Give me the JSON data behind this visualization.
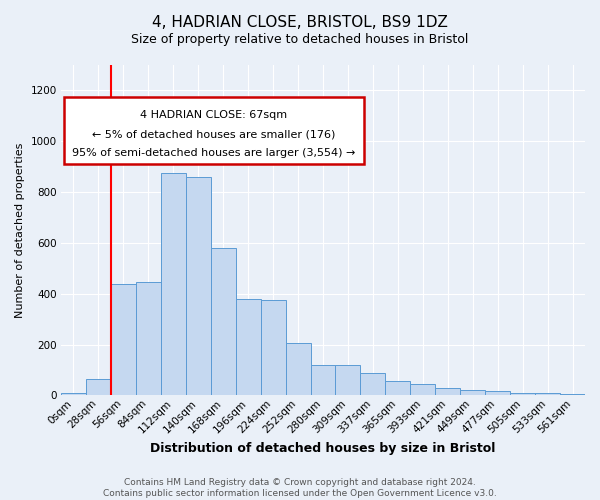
{
  "title": "4, HADRIAN CLOSE, BRISTOL, BS9 1DZ",
  "subtitle": "Size of property relative to detached houses in Bristol",
  "xlabel": "Distribution of detached houses by size in Bristol",
  "ylabel": "Number of detached properties",
  "footer_line1": "Contains HM Land Registry data © Crown copyright and database right 2024.",
  "footer_line2": "Contains public sector information licensed under the Open Government Licence v3.0.",
  "annotation_title": "4 HADRIAN CLOSE: 67sqm",
  "annotation_line2": "← 5% of detached houses are smaller (176)",
  "annotation_line3": "95% of semi-detached houses are larger (3,554) →",
  "bar_values": [
    10,
    65,
    440,
    445,
    875,
    860,
    580,
    380,
    375,
    205,
    120,
    120,
    90,
    55,
    45,
    30,
    20,
    18,
    10,
    8,
    5
  ],
  "bin_labels": [
    "0sqm",
    "28sqm",
    "56sqm",
    "84sqm",
    "112sqm",
    "140sqm",
    "168sqm",
    "196sqm",
    "224sqm",
    "252sqm",
    "280sqm",
    "309sqm",
    "337sqm",
    "365sqm",
    "393sqm",
    "421sqm",
    "449sqm",
    "477sqm",
    "505sqm",
    "533sqm",
    "561sqm"
  ],
  "bar_color": "#c5d8f0",
  "bar_edge_color": "#5b9bd5",
  "ylim": [
    0,
    1300
  ],
  "yticks": [
    0,
    200,
    400,
    600,
    800,
    1000,
    1200
  ],
  "bg_color": "#eaf0f8",
  "grid_color": "#ffffff",
  "annotation_box_color": "#ffffff",
  "annotation_box_edge": "#cc0000",
  "title_fontsize": 11,
  "subtitle_fontsize": 9,
  "xlabel_fontsize": 9,
  "ylabel_fontsize": 8,
  "tick_fontsize": 7.5,
  "footer_fontsize": 6.5,
  "ann_fontsize": 8
}
